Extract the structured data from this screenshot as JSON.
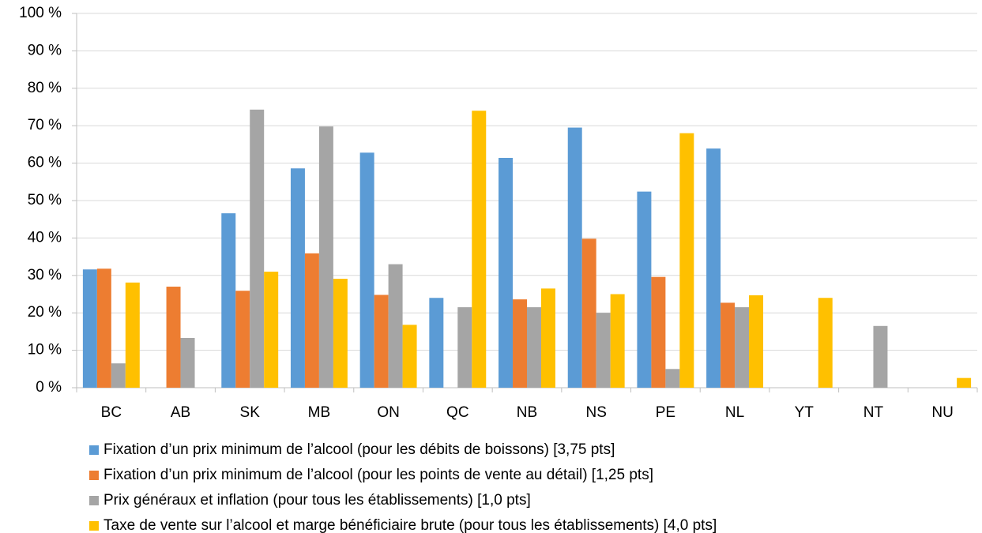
{
  "chart_data": {
    "type": "bar",
    "categories": [
      "BC",
      "AB",
      "SK",
      "MB",
      "ON",
      "QC",
      "NB",
      "NS",
      "PE",
      "NL",
      "YT",
      "NT",
      "NU"
    ],
    "series": [
      {
        "name": "Fixation d’un prix minimum de l’alcool (pour les débits de boissons) [3,75 pts]",
        "color": "#5b9bd5",
        "values": [
          31.6,
          0,
          46.6,
          58.6,
          62.8,
          24,
          61.4,
          69.5,
          52.4,
          63.9,
          0,
          0,
          0
        ]
      },
      {
        "name": "Fixation d’un prix minimum de l’alcool (pour les points de vente au détail) [1,25 pts]",
        "color": "#ed7d31",
        "values": [
          31.8,
          27,
          25.9,
          35.9,
          24.8,
          0,
          23.6,
          39.8,
          29.6,
          22.7,
          0,
          0,
          0
        ]
      },
      {
        "name": "Prix généraux et inflation (pour tous les établissements) [1,0 pts]",
        "color": "#a5a5a5",
        "values": [
          6.5,
          13.3,
          74.3,
          69.8,
          33,
          21.5,
          21.5,
          20,
          5,
          21.5,
          0,
          16.5,
          0
        ]
      },
      {
        "name": "Taxe de vente sur l’alcool et marge bénéficiaire brute (pour tous les établissements) [4,0 pts]",
        "color": "#ffc000",
        "values": [
          28.1,
          0,
          31,
          29.1,
          16.8,
          74,
          26.5,
          25,
          68,
          24.7,
          24,
          0,
          2.6
        ]
      }
    ],
    "ylim": [
      0,
      100
    ],
    "yticks": [
      {
        "value": 0,
        "label": "0 %"
      },
      {
        "value": 10,
        "label": "10 %"
      },
      {
        "value": 20,
        "label": "20 %"
      },
      {
        "value": 30,
        "label": "30 %"
      },
      {
        "value": 40,
        "label": "40 %"
      },
      {
        "value": 50,
        "label": "50 %"
      },
      {
        "value": 60,
        "label": "60 %"
      },
      {
        "value": 70,
        "label": "70 %"
      },
      {
        "value": 80,
        "label": "80 %"
      },
      {
        "value": 90,
        "label": "90 %"
      },
      {
        "value": 100,
        "label": "100 %"
      }
    ],
    "grid": true
  }
}
